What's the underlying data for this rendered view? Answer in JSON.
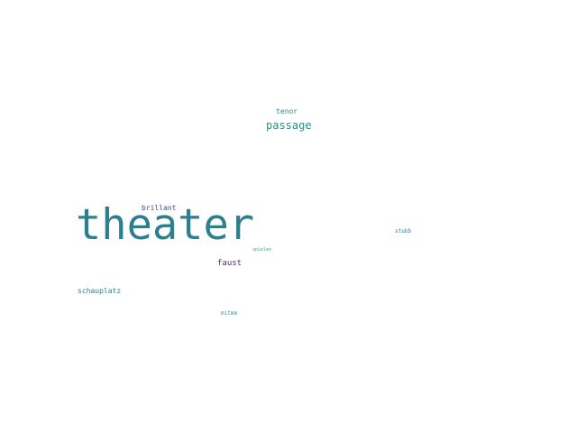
{
  "words": [
    {
      "id": "theater",
      "text": "theater",
      "color": "#2c7f8e"
    },
    {
      "id": "passage",
      "text": "passage",
      "color": "#22908c"
    },
    {
      "id": "tenor",
      "text": "tenor",
      "color": "#2a8a8a"
    },
    {
      "id": "brillant",
      "text": "brillant",
      "color": "#3f4f8a"
    },
    {
      "id": "faust",
      "text": "faust",
      "color": "#4a2f6e"
    },
    {
      "id": "schauplatz",
      "text": "schauplatz",
      "color": "#24858e"
    },
    {
      "id": "stubb",
      "text": "stubb",
      "color": "#2b8a9a"
    },
    {
      "id": "spielen",
      "text": "spielen",
      "color": "#3bab6f"
    },
    {
      "id": "mitmm",
      "text": "mitmm",
      "color": "#2a9aa0"
    }
  ]
}
